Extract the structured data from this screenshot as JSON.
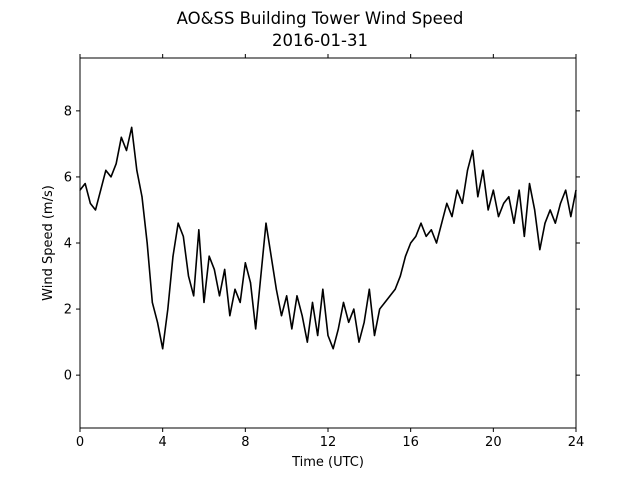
{
  "chart_data": {
    "type": "line",
    "title": "AO&SS Building Tower Wind Speed",
    "subtitle": "2016-01-31",
    "xlabel": "Time (UTC)",
    "ylabel": "Wind Speed (m/s)",
    "xlim": [
      0,
      24
    ],
    "ylim": [
      -1.6,
      9.6
    ],
    "xticks": [
      0,
      4,
      8,
      12,
      16,
      20,
      24
    ],
    "yticks": [
      0,
      2,
      4,
      6,
      8
    ],
    "grid": false,
    "line_color": "#000000",
    "series": [
      {
        "x": [
          0,
          0.25,
          0.5,
          0.75,
          1,
          1.25,
          1.5,
          1.75,
          2,
          2.25,
          2.5,
          2.75,
          3,
          3.25,
          3.5,
          3.75,
          4,
          4.25,
          4.5,
          4.75,
          5,
          5.25,
          5.5,
          5.75,
          6,
          6.25,
          6.5,
          6.75,
          7,
          7.25,
          7.5,
          7.75,
          8,
          8.25,
          8.5,
          8.75,
          9,
          9.25,
          9.5,
          9.75,
          10,
          10.25,
          10.5,
          10.75,
          11,
          11.25,
          11.5,
          11.75,
          12,
          12.25,
          12.5,
          12.75,
          13,
          13.25,
          13.5,
          13.75,
          14,
          14.25,
          14.5,
          14.75,
          15,
          15.25,
          15.5,
          15.75,
          16,
          16.25,
          16.5,
          16.75,
          17,
          17.25,
          17.5,
          17.75,
          18,
          18.25,
          18.5,
          18.75,
          19,
          19.25,
          19.5,
          19.75,
          20,
          20.25,
          20.5,
          20.75,
          21,
          21.25,
          21.5,
          21.75,
          22,
          22.25,
          22.5,
          22.75,
          23,
          23.25,
          23.5,
          23.75,
          24
        ],
        "y": [
          5.6,
          5.8,
          5.2,
          5.0,
          5.6,
          6.2,
          6.0,
          6.4,
          7.2,
          6.8,
          7.5,
          6.2,
          5.4,
          4.0,
          2.2,
          1.6,
          0.8,
          2.0,
          3.6,
          4.6,
          4.2,
          3.0,
          2.4,
          4.4,
          2.2,
          3.6,
          3.2,
          2.4,
          3.2,
          1.8,
          2.6,
          2.2,
          3.4,
          2.8,
          1.4,
          3.0,
          4.6,
          3.6,
          2.6,
          1.8,
          2.4,
          1.4,
          2.4,
          1.8,
          1.0,
          2.2,
          1.2,
          2.6,
          1.2,
          0.8,
          1.4,
          2.2,
          1.6,
          2.0,
          1.0,
          1.6,
          2.6,
          1.2,
          2.0,
          2.2,
          2.4,
          2.6,
          3.0,
          3.6,
          4.0,
          4.2,
          4.6,
          4.2,
          4.4,
          4.0,
          4.6,
          5.2,
          4.8,
          5.6,
          5.2,
          6.2,
          6.8,
          5.4,
          6.2,
          5.0,
          5.6,
          4.8,
          5.2,
          5.4,
          4.6,
          5.6,
          4.2,
          5.8,
          5.0,
          3.8,
          4.6,
          5.0,
          4.6,
          5.2,
          5.6,
          4.8,
          5.6
        ]
      }
    ]
  }
}
